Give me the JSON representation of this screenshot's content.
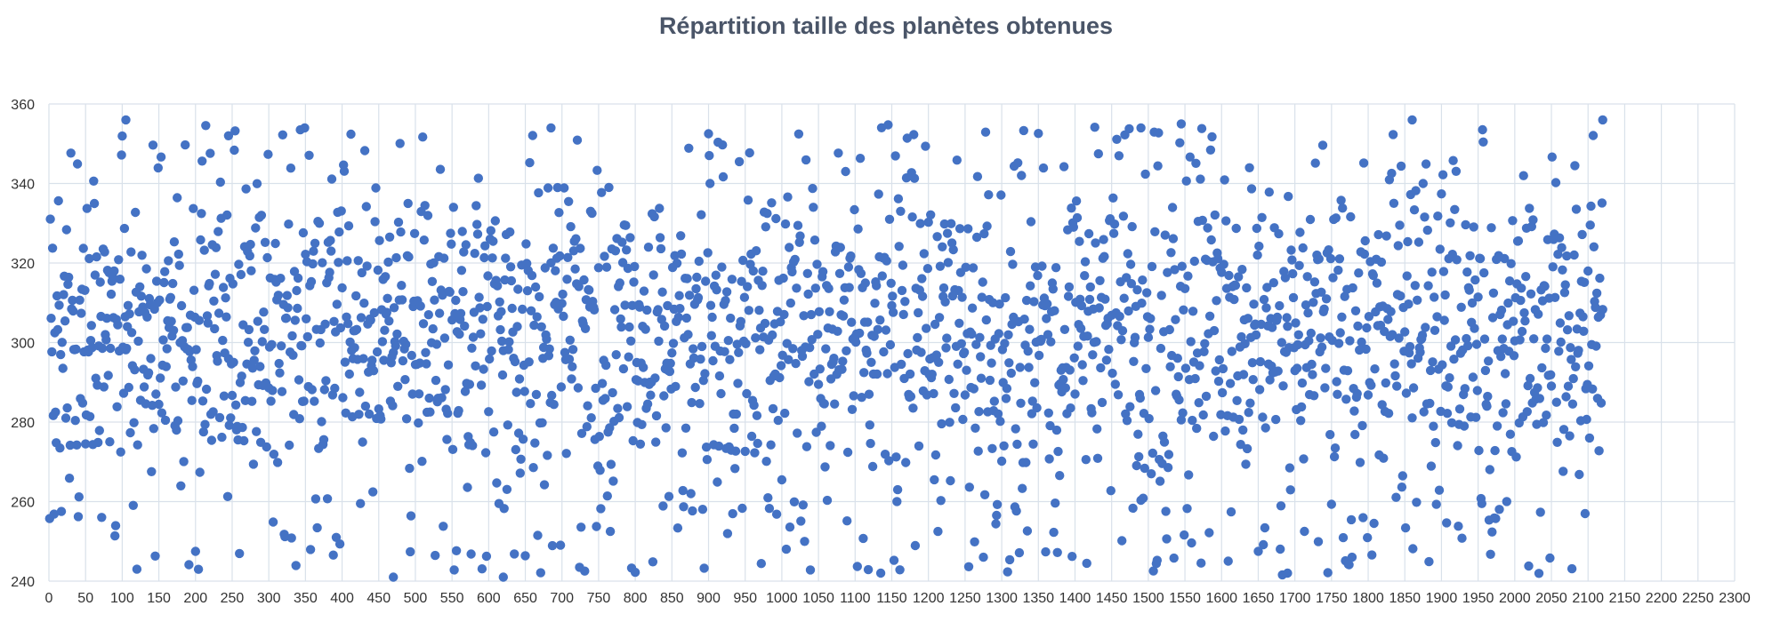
{
  "chart_data": {
    "type": "scatter",
    "title": "Répartition taille des planètes obtenues",
    "xlabel": "",
    "ylabel": "",
    "xlim": [
      0,
      2300
    ],
    "ylim": [
      240,
      360
    ],
    "x_ticks": [
      "0",
      "50",
      "100",
      "150",
      "200",
      "250",
      "300",
      "350",
      "400",
      "450",
      "500",
      "550",
      "600",
      "650",
      "700",
      "750",
      "800",
      "850",
      "900",
      "950",
      "1000",
      "1050",
      "1100",
      "1150",
      "1200",
      "1250",
      "1300",
      "1350",
      "1400",
      "1450",
      "1500",
      "1550",
      "1600",
      "1650",
      "1700",
      "1750",
      "1800",
      "1850",
      "1900",
      "1950",
      "2000",
      "2050",
      "2100",
      "2150",
      "2200",
      "2250",
      "2300"
    ],
    "y_ticks": [
      "240",
      "260",
      "280",
      "300",
      "320",
      "340",
      "360"
    ],
    "grid": true,
    "legend": "none",
    "marker_color": "#4472c4",
    "n_points": 2120,
    "y_distribution": "approximately uniform between 241 and 356",
    "notable_points": [
      {
        "x": 105,
        "y": 356
      },
      {
        "x": 245,
        "y": 352
      },
      {
        "x": 470,
        "y": 241
      },
      {
        "x": 620,
        "y": 241
      },
      {
        "x": 685,
        "y": 354
      },
      {
        "x": 1490,
        "y": 354
      },
      {
        "x": 1545,
        "y": 355
      },
      {
        "x": 1690,
        "y": 242
      },
      {
        "x": 1860,
        "y": 356
      },
      {
        "x": 2120,
        "y": 356
      }
    ]
  }
}
